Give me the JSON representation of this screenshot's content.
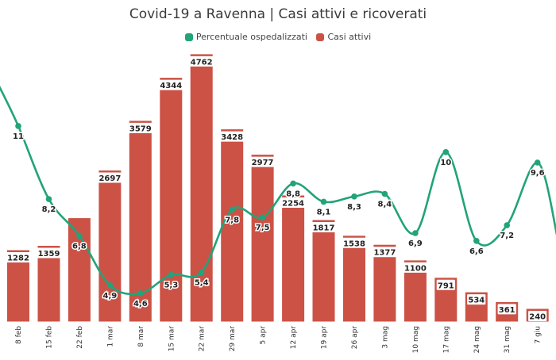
{
  "header": {
    "title": "Covid-19 a Ravenna | Casi attivi e ricoverati"
  },
  "legend": [
    {
      "label": "Percentuale ospedalizzati",
      "color": "#22a37a"
    },
    {
      "label": "Casi attivi",
      "color": "#cc5246"
    }
  ],
  "chart_data": {
    "type": "bar",
    "title": "Covid-19 a Ravenna | Casi attivi e ricoverati",
    "categories": [
      "8 feb",
      "15 feb",
      "22 feb",
      "1 mar",
      "8 mar",
      "15 mar",
      "22 mar",
      "29 mar",
      "5 apr",
      "12 apr",
      "19 apr",
      "26 apr",
      "3 mag",
      "10 mag",
      "17 mag",
      "24 mag",
      "31 mag",
      "7 giu"
    ],
    "series": [
      {
        "name": "Casi attivi",
        "type": "bar",
        "color": "#cc5246",
        "values": [
          1282,
          1359,
          1850,
          2697,
          3579,
          4344,
          4762,
          3428,
          2977,
          2254,
          1817,
          1538,
          1377,
          1100,
          791,
          534,
          361,
          240
        ],
        "labels": [
          "1282",
          "1359",
          "",
          "2697",
          "3579",
          "4344",
          "4762",
          "3428",
          "2977",
          "2254",
          "1817",
          "1538",
          "1377",
          "1100",
          "791",
          "534",
          "361",
          "240"
        ]
      },
      {
        "name": "Percentuale ospedalizzati",
        "type": "line",
        "smooth": true,
        "color": "#22a37a",
        "values": [
          11,
          8.2,
          6.8,
          4.9,
          4.6,
          5.3,
          5.4,
          7.8,
          7.5,
          8.8,
          8.1,
          8.3,
          8.4,
          6.9,
          10,
          6.6,
          7.2,
          9.6
        ],
        "labels": [
          "11",
          "8,2",
          "6,8",
          "4,9",
          "4,6",
          "5,3",
          "5,4",
          "7,8",
          "7,5",
          "8,8",
          "8,1",
          "8,3",
          "8,4",
          "6,9",
          "10",
          "6,6",
          "7,2",
          "9,6"
        ]
      }
    ],
    "ylim_bars": [
      0,
      5000
    ],
    "ylim_line": [
      3.5,
      14
    ],
    "xlabel": "",
    "ylabel": "",
    "grid": false,
    "legend_position": "top-center"
  }
}
